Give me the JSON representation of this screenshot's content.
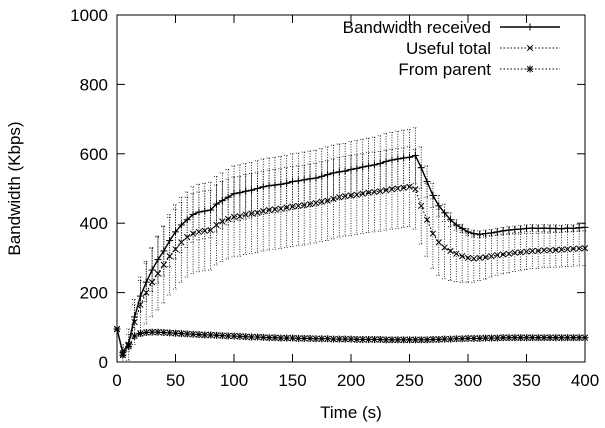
{
  "chart_data": {
    "type": "line",
    "title": "",
    "xlabel": "Time (s)",
    "ylabel": "Bandwidth (Kbps)",
    "xlim": [
      0,
      400
    ],
    "ylim": [
      0,
      1000
    ],
    "xticks": [
      0,
      50,
      100,
      150,
      200,
      250,
      300,
      350,
      400
    ],
    "yticks": [
      0,
      200,
      400,
      600,
      800,
      1000
    ],
    "xtick_labels": [
      "0",
      "50",
      "100",
      "150",
      "200",
      "250",
      "300",
      "350",
      "400"
    ],
    "ytick_labels": [
      "0",
      "200",
      "400",
      "600",
      "800",
      "1000"
    ],
    "grid": false,
    "legend_position": "top-right",
    "x": [
      0,
      5,
      10,
      15,
      20,
      25,
      30,
      35,
      40,
      45,
      50,
      55,
      60,
      65,
      70,
      75,
      80,
      85,
      90,
      95,
      100,
      105,
      110,
      115,
      120,
      125,
      130,
      135,
      140,
      145,
      150,
      155,
      160,
      165,
      170,
      175,
      180,
      185,
      190,
      195,
      200,
      205,
      210,
      215,
      220,
      225,
      230,
      235,
      240,
      245,
      250,
      255,
      260,
      265,
      270,
      275,
      280,
      285,
      290,
      295,
      300,
      305,
      310,
      315,
      320,
      325,
      330,
      335,
      340,
      345,
      350,
      355,
      360,
      365,
      370,
      375,
      380,
      385,
      390,
      395,
      400
    ],
    "series": [
      {
        "name": "Bandwidth received",
        "style": "solid",
        "marker": "plus",
        "values": [
          95,
          28,
          55,
          130,
          190,
          230,
          265,
          295,
          320,
          350,
          375,
          395,
          410,
          425,
          432,
          435,
          438,
          455,
          465,
          475,
          485,
          488,
          492,
          495,
          500,
          505,
          508,
          510,
          512,
          515,
          520,
          522,
          525,
          528,
          530,
          535,
          540,
          545,
          548,
          550,
          555,
          558,
          562,
          565,
          568,
          572,
          578,
          582,
          585,
          588,
          590,
          595,
          560,
          520,
          480,
          450,
          430,
          410,
          395,
          385,
          375,
          370,
          368,
          370,
          372,
          375,
          378,
          380,
          382,
          383,
          385,
          386,
          385,
          386,
          385,
          385,
          384,
          386,
          385,
          387,
          388
        ],
        "error": [
          0,
          15,
          25,
          35,
          45,
          55,
          62,
          68,
          72,
          75,
          78,
          80,
          80,
          80,
          80,
          80,
          80,
          80,
          80,
          80,
          80,
          80,
          80,
          80,
          80,
          80,
          80,
          80,
          80,
          80,
          80,
          80,
          80,
          80,
          80,
          80,
          80,
          80,
          80,
          80,
          80,
          80,
          80,
          80,
          80,
          80,
          80,
          80,
          80,
          80,
          80,
          80,
          60,
          45,
          35,
          30,
          25,
          20,
          15,
          12,
          10,
          10,
          10,
          10,
          10,
          10,
          10,
          10,
          10,
          10,
          10,
          10,
          10,
          10,
          10,
          10,
          10,
          10,
          10,
          10,
          10
        ]
      },
      {
        "name": "Useful total",
        "style": "dotted",
        "marker": "cross",
        "values": [
          95,
          25,
          50,
          115,
          165,
          200,
          230,
          255,
          280,
          305,
          325,
          345,
          360,
          370,
          375,
          378,
          380,
          395,
          405,
          412,
          418,
          420,
          425,
          428,
          430,
          435,
          438,
          440,
          442,
          445,
          448,
          450,
          452,
          455,
          458,
          462,
          465,
          470,
          475,
          478,
          480,
          482,
          485,
          488,
          490,
          492,
          495,
          498,
          500,
          502,
          505,
          498,
          450,
          410,
          370,
          345,
          330,
          320,
          312,
          305,
          300,
          298,
          300,
          302,
          305,
          308,
          310,
          312,
          315,
          316,
          318,
          320,
          320,
          322,
          322,
          323,
          324,
          325,
          326,
          327,
          328
        ],
        "error": [
          0,
          25,
          45,
          65,
          80,
          90,
          100,
          105,
          110,
          112,
          115,
          115,
          115,
          115,
          115,
          115,
          115,
          115,
          115,
          115,
          115,
          115,
          115,
          115,
          115,
          115,
          115,
          115,
          115,
          115,
          115,
          115,
          115,
          115,
          115,
          115,
          115,
          115,
          115,
          115,
          115,
          115,
          115,
          115,
          115,
          115,
          115,
          115,
          115,
          115,
          115,
          115,
          110,
          105,
          100,
          95,
          90,
          85,
          80,
          75,
          70,
          68,
          65,
          63,
          60,
          58,
          56,
          55,
          54,
          53,
          52,
          51,
          50,
          50,
          50,
          50,
          50,
          50,
          50,
          50,
          50
        ]
      },
      {
        "name": "From parent",
        "style": "dotted",
        "marker": "star",
        "values": [
          95,
          20,
          45,
          75,
          82,
          85,
          86,
          86,
          85,
          84,
          83,
          82,
          81,
          80,
          79,
          78,
          78,
          77,
          76,
          75,
          75,
          74,
          73,
          72,
          72,
          71,
          70,
          70,
          69,
          69,
          69,
          68,
          68,
          68,
          67,
          67,
          67,
          66,
          66,
          66,
          66,
          65,
          65,
          65,
          65,
          65,
          64,
          64,
          64,
          64,
          64,
          64,
          64,
          64,
          65,
          65,
          66,
          66,
          67,
          67,
          68,
          68,
          68,
          69,
          69,
          69,
          70,
          70,
          70,
          70,
          70,
          70,
          70,
          70,
          70,
          70,
          70,
          70,
          70,
          70,
          70
        ],
        "error": [
          0,
          5,
          8,
          8,
          8,
          8,
          8,
          8,
          8,
          8,
          8,
          8,
          8,
          8,
          8,
          8,
          8,
          8,
          8,
          8,
          8,
          8,
          8,
          8,
          8,
          8,
          8,
          8,
          8,
          8,
          8,
          8,
          8,
          8,
          8,
          8,
          8,
          8,
          8,
          8,
          8,
          8,
          8,
          8,
          8,
          8,
          8,
          8,
          8,
          8,
          8,
          8,
          8,
          8,
          8,
          8,
          8,
          8,
          8,
          8,
          8,
          8,
          8,
          8,
          8,
          8,
          8,
          8,
          8,
          8,
          8,
          8,
          8,
          8,
          8,
          8,
          8,
          8,
          8,
          8,
          8
        ]
      }
    ]
  }
}
